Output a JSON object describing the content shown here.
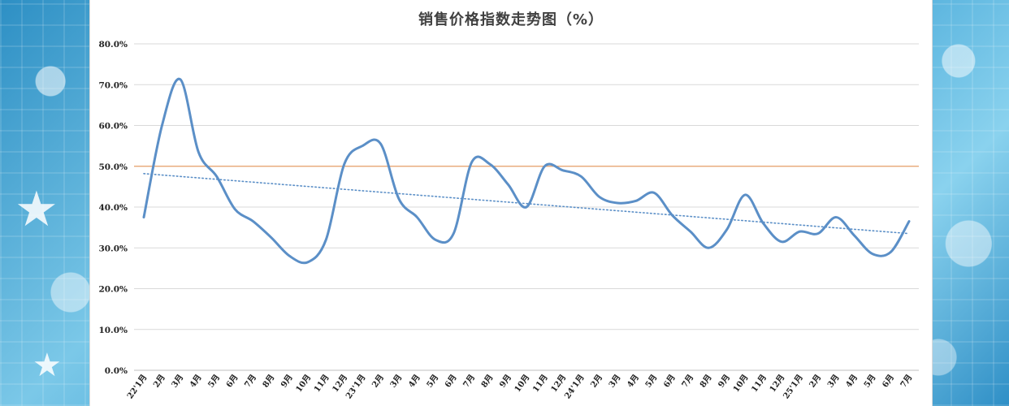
{
  "chart_data": {
    "type": "line",
    "title": "销售价格指数走势图（%）",
    "xlabel": "",
    "ylabel": "",
    "ylim": [
      0,
      80
    ],
    "y_ticks": [
      "0.0%",
      "10.0%",
      "20.0%",
      "30.0%",
      "40.0%",
      "50.0%",
      "60.0%",
      "70.0%",
      "80.0%"
    ],
    "categories": [
      "22'1月",
      "2月",
      "3月",
      "4月",
      "5月",
      "6月",
      "7月",
      "8月",
      "9月",
      "10月",
      "11月",
      "12月",
      "23'1月",
      "2月",
      "3月",
      "4月",
      "5月",
      "6月",
      "7月",
      "8月",
      "9月",
      "10月",
      "11月",
      "12月",
      "24'1月",
      "2月",
      "3月",
      "4月",
      "5月",
      "6月",
      "7月",
      "8月",
      "9月",
      "10月",
      "11月",
      "12月",
      "25'1月",
      "2月",
      "3月",
      "4月",
      "5月",
      "6月",
      "7月"
    ],
    "series": [
      {
        "values": [
          37.5,
          60.0,
          71.3,
          53.5,
          47.5,
          39.5,
          36.5,
          32.5,
          28.0,
          26.5,
          32.0,
          50.5,
          55.0,
          55.5,
          42.0,
          37.5,
          32.0,
          33.5,
          51.0,
          50.5,
          45.5,
          40.0,
          50.0,
          49.0,
          47.5,
          42.5,
          41.0,
          41.5,
          43.5,
          38.0,
          34.0,
          30.0,
          34.5,
          43.0,
          36.0,
          31.5,
          34.0,
          33.5,
          37.5,
          33.0,
          28.5,
          29.0,
          36.5
        ],
        "color": "#5b8fc7"
      }
    ],
    "reference_line": {
      "value": 50.0,
      "color": "#e8a06a"
    },
    "trendline": {
      "start": 48.2,
      "end": 33.5,
      "color": "#5b8fc7",
      "style": "dotted"
    },
    "grid": true,
    "legend": "none"
  }
}
